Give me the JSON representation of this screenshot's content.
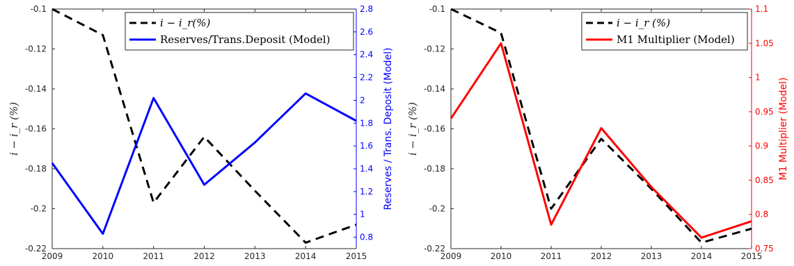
{
  "chart_data": [
    {
      "type": "line",
      "x": [
        2009,
        2010,
        2011,
        2012,
        2013,
        2014,
        2015
      ],
      "xlim": [
        2009,
        2015
      ],
      "ylabel_left": "i − i_r (%)",
      "ylabel_right": "Reserves / Trans. Deposit (Model)",
      "ylim_left": [
        -0.22,
        -0.1
      ],
      "ylim_right": [
        0.7,
        2.8
      ],
      "yticks_left": [
        "-0.1",
        "-0.12",
        "-0.14",
        "-0.16",
        "-0.18",
        "-0.2",
        "-0.22"
      ],
      "yticks_right": [
        "2.8",
        "2.6",
        "2.4",
        "2.2",
        "2",
        "1.8",
        "1.6",
        "1.4",
        "1.2",
        "1",
        "0.8"
      ],
      "legend_placement": "top-right",
      "series": [
        {
          "name": "i − i_r(%)",
          "axis": "left",
          "style": "dashed",
          "color": "#000000",
          "values": [
            -0.1,
            -0.113,
            -0.197,
            -0.164,
            -0.191,
            -0.217,
            -0.208
          ]
        },
        {
          "name": "Reserves/Trans.Deposit (Model)",
          "axis": "right",
          "style": "solid",
          "color": "#0000ff",
          "values": [
            1.45,
            0.83,
            2.02,
            1.26,
            1.63,
            2.06,
            1.82
          ]
        }
      ]
    },
    {
      "type": "line",
      "x": [
        2009,
        2010,
        2011,
        2012,
        2013,
        2014,
        2015
      ],
      "xlim": [
        2009,
        2015
      ],
      "ylabel_left": "i − i_r (%)",
      "ylabel_right": "M1 Multiplier (Model)",
      "ylim_left": [
        -0.22,
        -0.1
      ],
      "ylim_right": [
        0.75,
        1.1
      ],
      "yticks_left": [
        "-0.1",
        "-0.12",
        "-0.14",
        "-0.16",
        "-0.18",
        "-0.2",
        "-0.22"
      ],
      "yticks_right": [
        "1.1",
        "1.05",
        "1",
        "0.95",
        "0.9",
        "0.85",
        "0.8",
        "0.75"
      ],
      "legend_placement": "top-right",
      "series": [
        {
          "name": "i − i_r (%)",
          "axis": "left",
          "style": "dashed",
          "color": "#000000",
          "values": [
            -0.1,
            -0.112,
            -0.2,
            -0.165,
            -0.19,
            -0.217,
            -0.21
          ]
        },
        {
          "name": "M1 Multiplier (Model)",
          "axis": "right",
          "style": "solid",
          "color": "#ff0000",
          "values": [
            0.94,
            1.05,
            0.785,
            0.926,
            0.84,
            0.766,
            0.79
          ]
        }
      ]
    }
  ]
}
